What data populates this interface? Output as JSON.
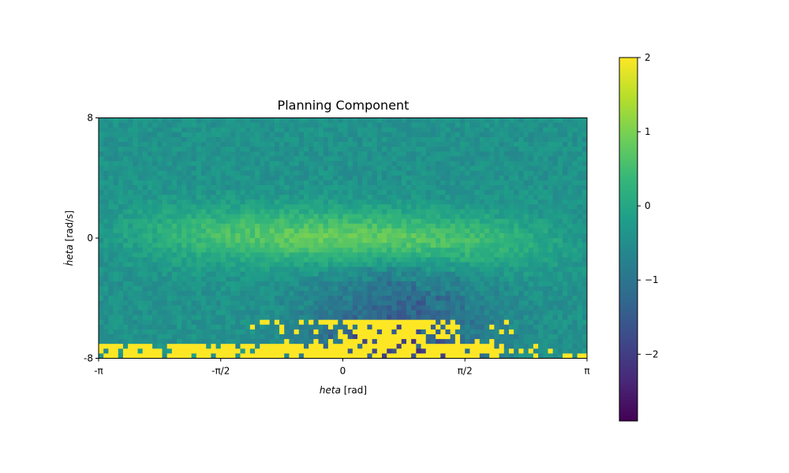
{
  "chart_data": {
    "type": "heatmap",
    "title": "Planning Component",
    "xlabel_symbol": "heta",
    "xlabel_unit": " [rad]",
    "ylabel_symbol": "ḣeta",
    "ylabel_unit": " [rad/s]",
    "xlim": [
      -3.14159,
      3.14159
    ],
    "ylim": [
      -8,
      8
    ],
    "xticks": [
      {
        "value": -3.14159,
        "label": "-π"
      },
      {
        "value": -1.5708,
        "label": "-π/2"
      },
      {
        "value": 0,
        "label": "0"
      },
      {
        "value": 1.5708,
        "label": "π/2"
      },
      {
        "value": 3.14159,
        "label": "π"
      }
    ],
    "yticks": [
      {
        "value": -8,
        "label": "-8"
      },
      {
        "value": 0,
        "label": "0"
      },
      {
        "value": 8,
        "label": "8"
      }
    ],
    "grid": {
      "cols": 100,
      "rows": 50
    },
    "colorbar": {
      "vmin": -2.9,
      "vmax": 2,
      "colormap": "viridis",
      "ticks": [
        {
          "value": 2,
          "label": "2"
        },
        {
          "value": 1,
          "label": "1"
        },
        {
          "value": 0,
          "label": "0"
        },
        {
          "value": -1,
          "label": "−1"
        },
        {
          "value": -2,
          "label": "−2"
        }
      ]
    },
    "colors": {
      "viridis_stops": [
        "#440154",
        "#482878",
        "#3e4989",
        "#31688e",
        "#26828e",
        "#1f9e89",
        "#35b779",
        "#6ece58",
        "#b5de2b",
        "#fde725"
      ]
    }
  }
}
